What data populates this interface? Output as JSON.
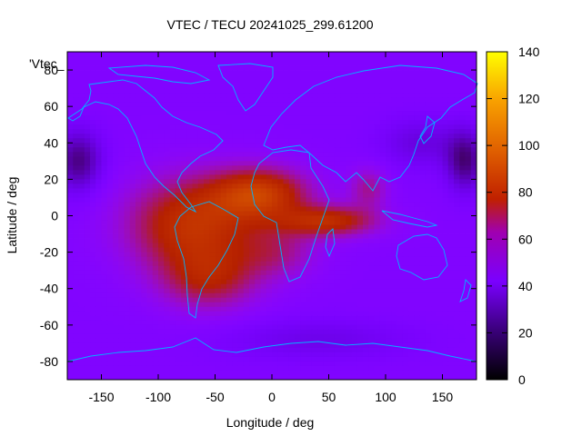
{
  "chart_data": {
    "type": "heatmap",
    "title": "VTEC / TECU 20241025_299.61200",
    "xlabel": "Longitude / deg",
    "ylabel": "Latitude / deg",
    "xlim": [
      -180,
      180
    ],
    "ylim": [
      -90,
      90
    ],
    "xticks": [
      -150,
      -100,
      -50,
      0,
      50,
      100,
      150
    ],
    "yticks": [
      -80,
      -60,
      -40,
      -20,
      0,
      20,
      40,
      60,
      80
    ],
    "colorbar": {
      "range": [
        0,
        140
      ],
      "ticks": [
        0,
        20,
        40,
        60,
        80,
        100,
        120,
        140
      ]
    },
    "key_label": "'Vtec_",
    "overlay": "coastlines",
    "background_level": 36,
    "features": [
      {
        "kind": "peak",
        "lon": -70,
        "lat": -5,
        "sigma_lon": 40,
        "sigma_lat": 18,
        "amp": 44
      },
      {
        "kind": "peak",
        "lon": -10,
        "lat": 12,
        "sigma_lon": 30,
        "sigma_lat": 10,
        "amp": 46
      },
      {
        "kind": "peak",
        "lon": 50,
        "lat": -3,
        "sigma_lon": 30,
        "sigma_lat": 6,
        "amp": 40
      },
      {
        "kind": "peak",
        "lon": -55,
        "lat": -35,
        "sigma_lon": 30,
        "sigma_lat": 12,
        "amp": 28
      },
      {
        "kind": "peak",
        "lon": 5,
        "lat": -20,
        "sigma_lon": 25,
        "sigma_lat": 10,
        "amp": 18
      },
      {
        "kind": "peak",
        "lon": 85,
        "lat": 15,
        "sigma_lon": 12,
        "sigma_lat": 8,
        "amp": 20
      },
      {
        "kind": "low",
        "lon": -170,
        "lat": 30,
        "sigma_lon": 15,
        "sigma_lat": 12,
        "amp": -24
      },
      {
        "kind": "low",
        "lon": 170,
        "lat": 30,
        "sigma_lon": 12,
        "sigma_lat": 12,
        "amp": -24
      },
      {
        "kind": "low",
        "lon": 130,
        "lat": 40,
        "sigma_lon": 25,
        "sigma_lat": 10,
        "amp": -12
      },
      {
        "kind": "low",
        "lon": 40,
        "lat": -68,
        "sigma_lon": 60,
        "sigma_lat": 8,
        "amp": -10
      }
    ]
  }
}
